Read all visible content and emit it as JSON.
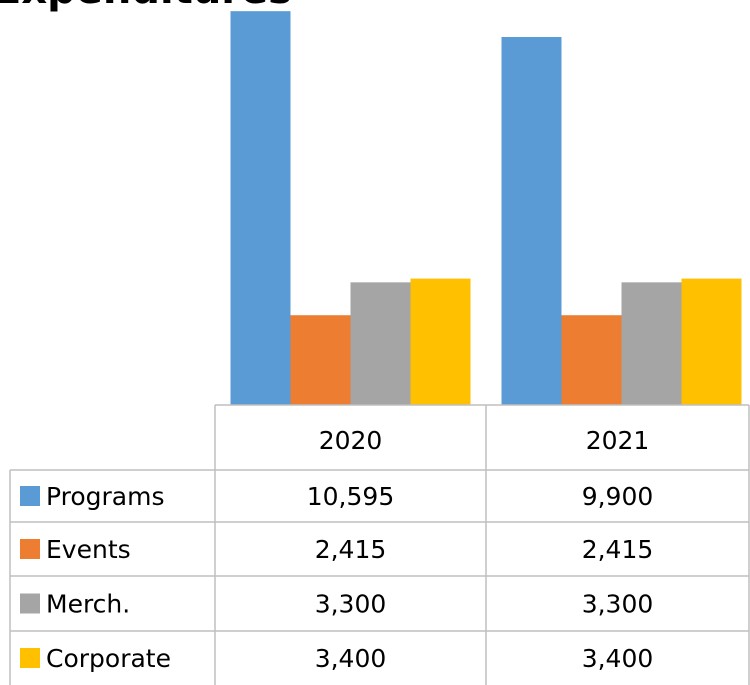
{
  "chart_data": {
    "type": "bar",
    "title": "Expenditures",
    "categories": [
      "2020",
      "2021"
    ],
    "series": [
      {
        "name": "Programs",
        "color": "#5b9bd5",
        "values": [
          10595,
          9900
        ],
        "value_labels": [
          "10,595",
          "9,900"
        ]
      },
      {
        "name": "Events",
        "color": "#ed7d31",
        "values": [
          2415,
          2415
        ],
        "value_labels": [
          "2,415",
          "2,415"
        ]
      },
      {
        "name": "Merch.",
        "color": "#a5a5a5",
        "values": [
          3300,
          3300
        ],
        "value_labels": [
          "3,300",
          "3,300"
        ]
      },
      {
        "name": "Corporate",
        "color": "#ffc000",
        "values": [
          3400,
          3400
        ],
        "value_labels": [
          "3,400",
          "3,400"
        ]
      }
    ],
    "ylim": [
      0,
      12000
    ]
  }
}
